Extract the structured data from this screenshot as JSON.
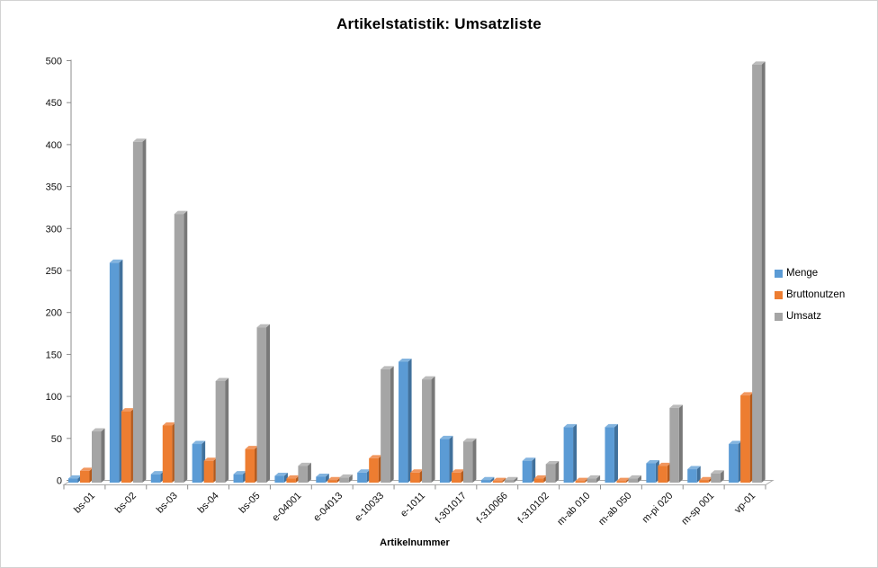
{
  "window": {
    "background": "#FFFFFF",
    "border_color": "#D3D3D3"
  },
  "chart_data": {
    "type": "bar",
    "style": "3d-clustered-column",
    "title": "Artikelstatistik: Umsatzliste",
    "xlabel": "Artikelnummer",
    "ylabel": "",
    "ylim": [
      0,
      500
    ],
    "ytick_step": 50,
    "ytick_labels": [
      "0",
      "50",
      "100",
      "150",
      "200",
      "250",
      "300",
      "350",
      "400",
      "450",
      "500"
    ],
    "grid": false,
    "legend_position": "right",
    "axis_color": "#8C8C8C",
    "text_color": "#111111",
    "categories": [
      "bs-01",
      "bs-02",
      "bs-03",
      "bs-04",
      "bs-05",
      "e-04001",
      "e-04013",
      "e-10033",
      "e-1011",
      "f-301017",
      "f-310066",
      "f-310102",
      "m-ab 010",
      "m-ab 050",
      "m-pi 020",
      "m-sp 001",
      "vp-01"
    ],
    "series": [
      {
        "name": "Menge",
        "color": "#5B9BD5",
        "color_side": "#41719C",
        "color_top": "#83B4DF",
        "values": [
          5,
          262,
          10,
          46,
          10,
          8,
          7,
          12,
          144,
          52,
          3,
          26,
          66,
          66,
          23,
          16,
          46
        ]
      },
      {
        "name": "Bruttonutzen",
        "color": "#ED7D31",
        "color_side": "#B55A1B",
        "color_top": "#F1975F",
        "values": [
          14,
          85,
          68,
          26,
          40,
          5,
          3,
          29,
          12,
          12,
          2,
          5,
          2,
          2,
          20,
          3,
          104
        ]
      },
      {
        "name": "Umsatz",
        "color": "#A5A5A5",
        "color_side": "#787878",
        "color_top": "#BBBBBB",
        "values": [
          61,
          406,
          320,
          121,
          185,
          20,
          6,
          135,
          123,
          49,
          3,
          22,
          5,
          5,
          89,
          11,
          498
        ]
      }
    ]
  }
}
